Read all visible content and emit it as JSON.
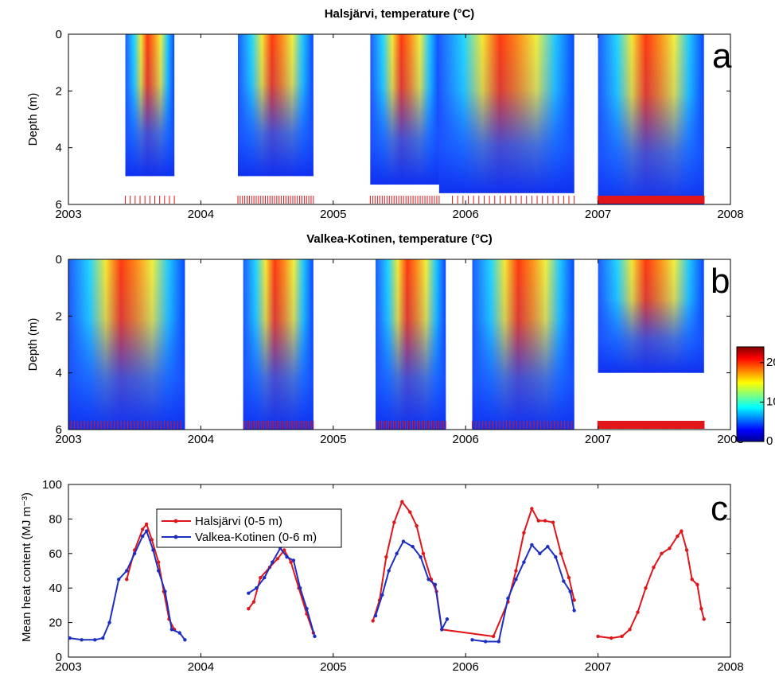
{
  "chart_data": [
    {
      "type": "heatmap",
      "panel": "a",
      "title": "Halsjärvi, temperature (°C)",
      "ylabel": "Depth (m)",
      "xlim": [
        2003,
        2008
      ],
      "ylim": [
        6,
        0
      ],
      "x_ticks": [
        "2003",
        "2004",
        "2005",
        "2006",
        "2007",
        "2008"
      ],
      "y_ticks": [
        "0",
        "2",
        "4",
        "6"
      ],
      "coverage": [
        {
          "x0": 2003.43,
          "x1": 2003.8,
          "depth_max": 5.0
        },
        {
          "x0": 2004.28,
          "x1": 2004.85,
          "depth_max": 5.0
        },
        {
          "x0": 2005.28,
          "x1": 2005.8,
          "depth_max": 5.3
        },
        {
          "x0": 2005.8,
          "x1": 2006.82,
          "depth_max": 5.6
        },
        {
          "x0": 2007.0,
          "x1": 2007.8,
          "depth_max": 6.0
        }
      ],
      "sampling_marks": [
        {
          "from": 2003.43,
          "to": 2003.8,
          "count": 11
        },
        {
          "from": 2004.28,
          "to": 2004.85,
          "count": 34
        },
        {
          "from": 2005.28,
          "to": 2005.8,
          "count": 30
        },
        {
          "from": 2005.9,
          "to": 2006.82,
          "count": 24
        },
        {
          "from": 2007.0,
          "to": 2007.8,
          "count": 200
        }
      ]
    },
    {
      "type": "heatmap",
      "panel": "b",
      "title": "Valkea-Kotinen, temperature (°C)",
      "ylabel": "Depth (m)",
      "xlim": [
        2003,
        2008
      ],
      "ylim": [
        6,
        0
      ],
      "x_ticks": [
        "2003",
        "2004",
        "2005",
        "2006",
        "2007",
        "2008"
      ],
      "y_ticks": [
        "0",
        "2",
        "4",
        "6"
      ],
      "coverage": [
        {
          "x0": 2003.0,
          "x1": 2003.88,
          "depth_max": 6.0
        },
        {
          "x0": 2004.32,
          "x1": 2004.85,
          "depth_max": 6.0
        },
        {
          "x0": 2005.32,
          "x1": 2005.85,
          "depth_max": 6.0
        },
        {
          "x0": 2006.05,
          "x1": 2006.82,
          "depth_max": 6.0
        },
        {
          "x0": 2007.0,
          "x1": 2007.8,
          "depth_max": 4.0
        }
      ],
      "sampling_marks": [
        {
          "from": 2003.02,
          "to": 2003.85,
          "count": 34
        },
        {
          "from": 2004.33,
          "to": 2004.85,
          "count": 30
        },
        {
          "from": 2005.33,
          "to": 2005.85,
          "count": 30
        },
        {
          "from": 2006.05,
          "to": 2006.8,
          "count": 30
        },
        {
          "from": 2007.0,
          "to": 2007.8,
          "count": 200
        }
      ],
      "colorbar": {
        "ticks": [
          "0",
          "10",
          "20"
        ],
        "min": 0,
        "max": 24
      }
    },
    {
      "type": "line",
      "panel": "c",
      "ylabel": "Mean heat content (MJ m⁻³)",
      "xlim": [
        2003,
        2008
      ],
      "ylim": [
        0,
        100
      ],
      "x_ticks": [
        "2003",
        "2004",
        "2005",
        "2006",
        "2007",
        "2008"
      ],
      "y_ticks": [
        "0",
        "20",
        "40",
        "60",
        "80",
        "100"
      ],
      "series": [
        {
          "name": "Halsjärvi (0-5 m)",
          "color": "#e0161b",
          "segments": [
            [
              [
                2003.44,
                45
              ],
              [
                2003.5,
                62
              ],
              [
                2003.56,
                74
              ],
              [
                2003.59,
                77
              ],
              [
                2003.63,
                68
              ],
              [
                2003.68,
                55
              ],
              [
                2003.72,
                38
              ],
              [
                2003.76,
                22
              ],
              [
                2003.8,
                16
              ]
            ],
            [
              [
                2004.36,
                28
              ],
              [
                2004.4,
                32
              ],
              [
                2004.45,
                46
              ],
              [
                2004.52,
                52
              ],
              [
                2004.58,
                57
              ],
              [
                2004.63,
                62
              ],
              [
                2004.68,
                55
              ],
              [
                2004.74,
                40
              ],
              [
                2004.8,
                25
              ],
              [
                2004.85,
                14
              ]
            ],
            [
              [
                2005.3,
                21
              ],
              [
                2005.35,
                33
              ],
              [
                2005.4,
                58
              ],
              [
                2005.46,
                78
              ],
              [
                2005.52,
                90
              ],
              [
                2005.58,
                84
              ],
              [
                2005.63,
                76
              ],
              [
                2005.68,
                60
              ],
              [
                2005.74,
                45
              ],
              [
                2005.78,
                38
              ],
              [
                2005.82,
                16
              ],
              [
                2006.21,
                12
              ],
              [
                2006.32,
                32
              ],
              [
                2006.38,
                50
              ],
              [
                2006.44,
                72
              ],
              [
                2006.5,
                86
              ],
              [
                2006.55,
                79
              ],
              [
                2006.6,
                79
              ],
              [
                2006.66,
                78
              ],
              [
                2006.72,
                60
              ],
              [
                2006.78,
                46
              ],
              [
                2006.82,
                33
              ]
            ],
            [
              [
                2007.0,
                12
              ],
              [
                2007.1,
                11
              ],
              [
                2007.18,
                12
              ],
              [
                2007.24,
                16
              ],
              [
                2007.3,
                26
              ],
              [
                2007.36,
                40
              ],
              [
                2007.42,
                52
              ],
              [
                2007.48,
                60
              ],
              [
                2007.54,
                63
              ],
              [
                2007.6,
                70
              ],
              [
                2007.63,
                73
              ],
              [
                2007.67,
                62
              ],
              [
                2007.71,
                45
              ],
              [
                2007.75,
                42
              ],
              [
                2007.78,
                28
              ],
              [
                2007.8,
                22
              ]
            ]
          ]
        },
        {
          "name": "Valkea-Kotinen (0-6 m)",
          "color": "#1c2fc0",
          "segments": [
            [
              [
                2003.01,
                11
              ],
              [
                2003.1,
                10
              ],
              [
                2003.2,
                10
              ],
              [
                2003.26,
                11
              ],
              [
                2003.31,
                20
              ],
              [
                2003.38,
                45
              ],
              [
                2003.44,
                50
              ],
              [
                2003.5,
                60
              ],
              [
                2003.56,
                70
              ],
              [
                2003.59,
                73
              ],
              [
                2003.64,
                62
              ],
              [
                2003.68,
                50
              ],
              [
                2003.73,
                38
              ],
              [
                2003.78,
                16
              ],
              [
                2003.84,
                14
              ],
              [
                2003.88,
                10
              ]
            ],
            [
              [
                2004.36,
                37
              ],
              [
                2004.42,
                40
              ],
              [
                2004.48,
                46
              ],
              [
                2004.54,
                55
              ],
              [
                2004.6,
                63
              ],
              [
                2004.65,
                58
              ],
              [
                2004.7,
                56
              ],
              [
                2004.75,
                40
              ],
              [
                2004.8,
                28
              ],
              [
                2004.86,
                12
              ]
            ],
            [
              [
                2005.32,
                24
              ],
              [
                2005.37,
                36
              ],
              [
                2005.42,
                50
              ],
              [
                2005.48,
                60
              ],
              [
                2005.53,
                67
              ],
              [
                2005.6,
                64
              ],
              [
                2005.66,
                58
              ],
              [
                2005.72,
                45
              ],
              [
                2005.77,
                42
              ],
              [
                2005.82,
                16
              ],
              [
                2005.86,
                22
              ]
            ],
            [
              [
                2006.05,
                10
              ],
              [
                2006.15,
                9
              ],
              [
                2006.25,
                9
              ],
              [
                2006.32,
                34
              ],
              [
                2006.38,
                45
              ],
              [
                2006.44,
                55
              ],
              [
                2006.5,
                65
              ],
              [
                2006.56,
                60
              ],
              [
                2006.62,
                64
              ],
              [
                2006.68,
                58
              ],
              [
                2006.74,
                44
              ],
              [
                2006.79,
                38
              ],
              [
                2006.82,
                27
              ]
            ]
          ]
        }
      ]
    }
  ],
  "panel_letters": {
    "a": "a",
    "b": "b",
    "c": "c"
  },
  "legend": {
    "series_1": "Halsjärvi (0-5 m)",
    "series_2": "Valkea-Kotinen (0-6 m)"
  }
}
